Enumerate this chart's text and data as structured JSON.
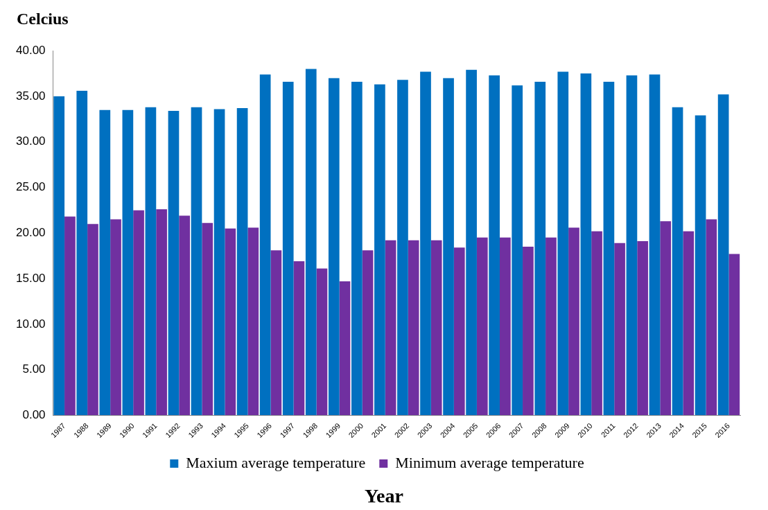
{
  "chart_data": {
    "type": "bar",
    "ylabel": "Celcius",
    "xlabel": "Year",
    "categories": [
      "1987",
      "1988",
      "1989",
      "1990",
      "1991",
      "1992",
      "1993",
      "1994",
      "1995",
      "1996",
      "1997",
      "1998",
      "1999",
      "2000",
      "2001",
      "2002",
      "2003",
      "2004",
      "2005",
      "2006",
      "2007",
      "2008",
      "2009",
      "2010",
      "2011",
      "2012",
      "2013",
      "2014",
      "2015",
      "2016"
    ],
    "series": [
      {
        "name": "Maxium average temperature",
        "color": "#0070c0",
        "values": [
          35.0,
          35.6,
          33.5,
          33.5,
          33.8,
          33.4,
          33.8,
          33.6,
          33.7,
          37.4,
          36.6,
          38.0,
          37.0,
          36.6,
          36.3,
          36.8,
          37.7,
          37.0,
          37.9,
          37.3,
          36.2,
          36.6,
          37.7,
          37.5,
          36.6,
          37.3,
          37.4,
          33.8,
          32.9,
          35.2
        ]
      },
      {
        "name": "Minimum average temperature",
        "color": "#7030a0",
        "values": [
          21.8,
          21.0,
          21.5,
          22.5,
          22.6,
          21.9,
          21.1,
          20.5,
          20.6,
          18.1,
          16.9,
          16.1,
          14.7,
          18.1,
          19.2,
          19.2,
          19.2,
          18.4,
          19.5,
          19.5,
          18.5,
          19.5,
          20.6,
          20.2,
          18.9,
          19.1,
          21.3,
          20.2,
          21.5,
          17.7
        ]
      }
    ],
    "ylim": [
      0,
      40
    ],
    "yticks": [
      {
        "value": 0,
        "label": "0.00"
      },
      {
        "value": 5,
        "label": "5.00"
      },
      {
        "value": 10,
        "label": "10.00"
      },
      {
        "value": 15,
        "label": "15.00"
      },
      {
        "value": 20,
        "label": "20.00"
      },
      {
        "value": 25,
        "label": "25.00"
      },
      {
        "value": 30,
        "label": "30.00"
      },
      {
        "value": 35,
        "label": "35.00"
      },
      {
        "value": 40,
        "label": "40.00"
      }
    ],
    "grid": false,
    "legend": "bottom"
  }
}
